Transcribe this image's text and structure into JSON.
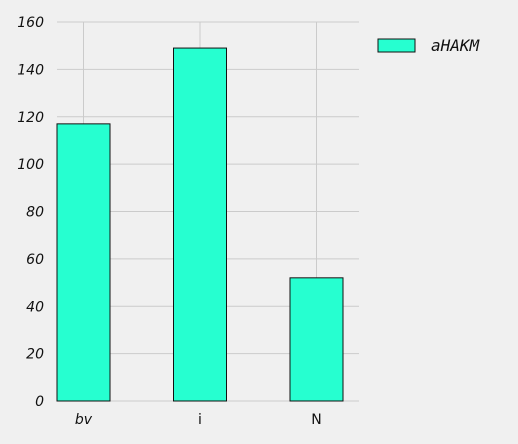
{
  "chart_data": {
    "type": "bar",
    "categories": [
      "bv",
      "i",
      "N"
    ],
    "category_italic": [
      true,
      false,
      false
    ],
    "series": [
      {
        "name": "aHAKM",
        "values": [
          117,
          149,
          52
        ]
      }
    ],
    "ylim": [
      0,
      160
    ],
    "yticks": [
      0,
      20,
      40,
      60,
      80,
      100,
      120,
      140,
      160
    ],
    "grid": true,
    "legend": "top-right",
    "colors": {
      "bar": "#26ffd0",
      "bar_edge": "#111111",
      "grid": "#cbcbcb",
      "background": "#f0f0f0"
    }
  }
}
